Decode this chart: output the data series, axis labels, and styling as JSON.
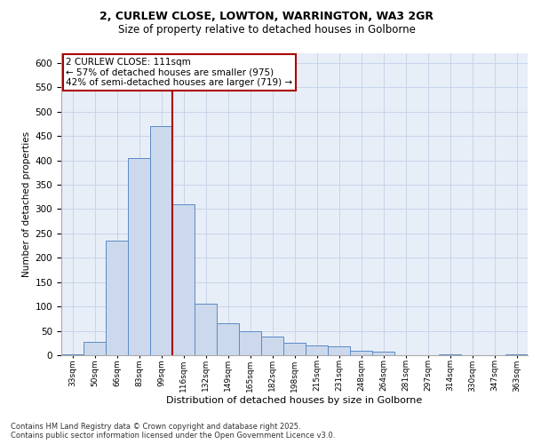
{
  "title_line1": "2, CURLEW CLOSE, LOWTON, WARRINGTON, WA3 2GR",
  "title_line2": "Size of property relative to detached houses in Golborne",
  "xlabel": "Distribution of detached houses by size in Golborne",
  "ylabel": "Number of detached properties",
  "categories": [
    "33sqm",
    "50sqm",
    "66sqm",
    "83sqm",
    "99sqm",
    "116sqm",
    "132sqm",
    "149sqm",
    "165sqm",
    "182sqm",
    "198sqm",
    "215sqm",
    "231sqm",
    "248sqm",
    "264sqm",
    "281sqm",
    "297sqm",
    "314sqm",
    "330sqm",
    "347sqm",
    "363sqm"
  ],
  "values": [
    2,
    28,
    235,
    405,
    470,
    310,
    105,
    65,
    50,
    38,
    25,
    20,
    18,
    10,
    8,
    0,
    0,
    2,
    0,
    0,
    1
  ],
  "bar_color": "#ccd9ec",
  "bar_edge_color": "#5b8ac5",
  "grid_color": "#c8d4e8",
  "background_color": "#e8eef8",
  "vline_color": "#aa0000",
  "vline_index": 5,
  "annotation_text": "2 CURLEW CLOSE: 111sqm\n← 57% of detached houses are smaller (975)\n42% of semi-detached houses are larger (719) →",
  "annotation_box_edgecolor": "#aa0000",
  "footer_text": "Contains HM Land Registry data © Crown copyright and database right 2025.\nContains public sector information licensed under the Open Government Licence v3.0.",
  "ylim": [
    0,
    620
  ],
  "yticks": [
    0,
    50,
    100,
    150,
    200,
    250,
    300,
    350,
    400,
    450,
    500,
    550,
    600
  ]
}
